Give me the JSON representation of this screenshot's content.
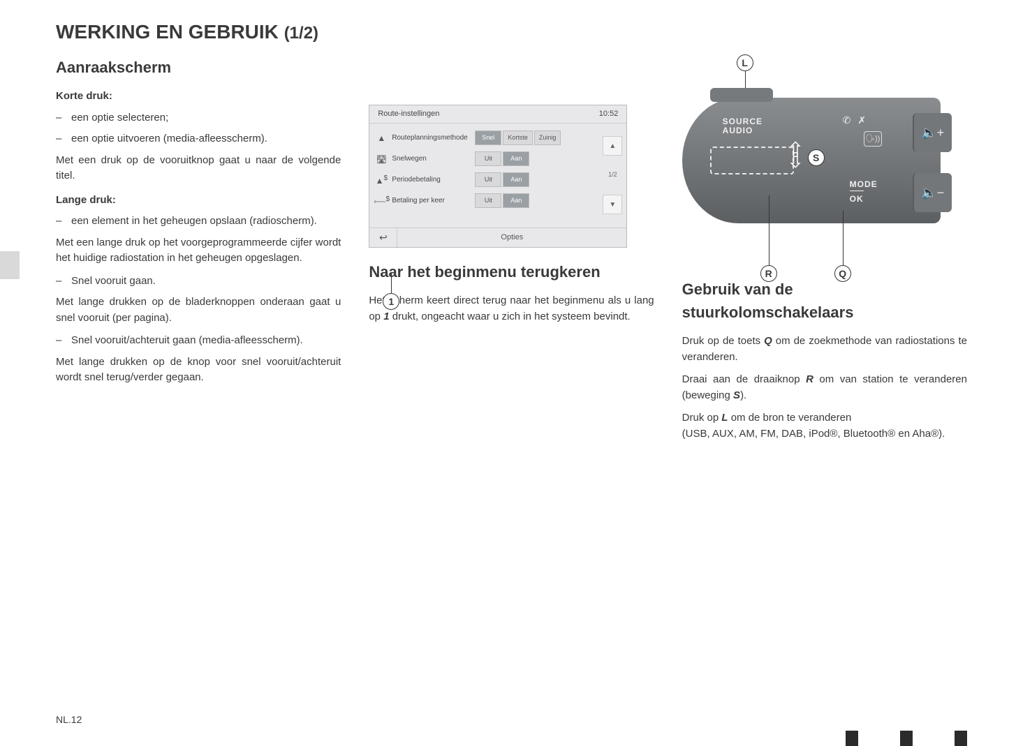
{
  "title_main": "WERKING EN GEBRUIK ",
  "title_sub": "(1/2)",
  "page_number": "NL.12",
  "col1": {
    "h2": "Aanraakscherm",
    "short_press_h": "Korte druk:",
    "sp_b1": "een optie selecteren;",
    "sp_b2": "een optie uitvoeren (media-afleesscherm).",
    "sp_p1": "Met een druk op de vooruitknop gaat u naar de volgende titel.",
    "long_press_h": "Lange druk:",
    "lp_b1": "een element in het geheugen opslaan (radioscherm).",
    "lp_p1": "Met een lange druk op het voorgeprogrammeerde cijfer wordt het huidige radiostation in het geheugen opgeslagen.",
    "lp_b2": "Snel vooruit gaan.",
    "lp_p2": "Met lange drukken op de bladerknoppen onderaan gaat u snel vooruit (per pagina).",
    "lp_b3": "Snel vooruit/achteruit gaan (media-afleesscherm).",
    "lp_p3": "Met lange drukken op de knop voor snel vooruit/achteruit wordt snel terug/verder gegaan."
  },
  "screen": {
    "header_title": "Route-instellingen",
    "time": "10:52",
    "rows": [
      {
        "label": "Routeplanningsmethode",
        "opts": [
          "Snel",
          "Kortste",
          "Zuinig"
        ],
        "sel": 0
      },
      {
        "label": "Snelwegen",
        "opts": [
          "Uit",
          "Aan"
        ],
        "sel": 1
      },
      {
        "label": "Periodebetaling",
        "opts": [
          "Uit",
          "Aan"
        ],
        "sel": 1
      },
      {
        "label": "Betaling per keer",
        "opts": [
          "Uit",
          "Aan"
        ],
        "sel": 1
      }
    ],
    "page_indicator": "1/2",
    "footer_label": "Opties",
    "callout_1": "1"
  },
  "col2": {
    "heading": "Naar het beginmenu terugkeren",
    "p_before": "Het scherm keert direct terug naar het beginmenu als u lang op ",
    "p_bold": "1",
    "p_after": " drukt, ongeacht waar u zich in het systeem bevindt."
  },
  "control": {
    "source_audio": "SOURCE\nAUDIO",
    "mode": "MODE",
    "ok": "OK",
    "vol_plus": "🔇+",
    "vol_minus": "🔇−",
    "label_L": "L",
    "label_S": "S",
    "label_R": "R",
    "label_Q": "Q"
  },
  "col3": {
    "heading": "Gebruik van de stuurkolomschakelaars",
    "p1_a": "Druk op de toets ",
    "p1_b": "Q",
    "p1_c": " om de zoekmethode van radiostations te veranderen.",
    "p2_a": "Draai aan de draaiknop ",
    "p2_b": "R",
    "p2_c": " om van station te veranderen (beweging ",
    "p2_d": "S",
    "p2_e": ").",
    "p3_a": "Druk op ",
    "p3_b": "L",
    "p3_c": " om de bron te veranderen",
    "p3_d": "(USB, AUX, AM, FM, DAB, iPod®, Bluetooth® en Aha®)."
  }
}
